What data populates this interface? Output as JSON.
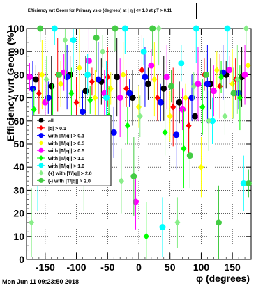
{
  "chart_data": {
    "type": "scatter",
    "title": "Efficiency wrt Geom for Primary vs φ (degrees) at | η | <= 1.0 at pT > 0.11",
    "xlabel": "φ (degrees)",
    "ylabel": "Efficiency wrt Geom (%)",
    "xlim": [
      -180,
      180
    ],
    "ylim": [
      0,
      100
    ],
    "x_ticks": [
      "-150",
      "-100",
      "-50",
      "0",
      "50",
      "100",
      "150"
    ],
    "y_ticks": [
      "0",
      "10",
      "20",
      "30",
      "40",
      "50",
      "60",
      "70",
      "80",
      "90",
      "100"
    ],
    "grid": true,
    "legend_position": "center-left",
    "series": [
      {
        "name": "all",
        "color": "#000000",
        "x": [
          -165,
          -140,
          -110,
          -85,
          -60,
          -35,
          -10,
          15,
          40,
          65,
          90,
          115,
          140,
          165
        ],
        "y": [
          78,
          75,
          80,
          73,
          77,
          79,
          70,
          76,
          74,
          68,
          62,
          76,
          80,
          79
        ]
      },
      {
        "name": "|q| > 0.1",
        "color": "#ff0000",
        "x": [
          -160,
          -130,
          -100,
          -75,
          -50,
          -20,
          5,
          30,
          55,
          80,
          105,
          130,
          155
        ],
        "y": [
          72,
          80,
          68,
          77,
          79,
          74,
          82,
          70,
          66,
          58,
          80,
          75,
          78
        ]
      },
      {
        "name": "with |T/|q|| > 0.1",
        "color": "#0000ff",
        "x": [
          -170,
          -145,
          -115,
          -90,
          -65,
          -40,
          -15,
          10,
          35,
          60,
          85,
          110,
          135,
          160
        ],
        "y": [
          74,
          70,
          79,
          64,
          78,
          55,
          72,
          79,
          68,
          54,
          70,
          76,
          81,
          72
        ]
      },
      {
        "name": "with |T/|q|| > 0.5",
        "color": "#ffff00",
        "x": [
          -155,
          -125,
          -95,
          -70,
          -45,
          -25,
          0,
          25,
          50,
          75,
          100,
          125,
          150,
          175
        ],
        "y": [
          80,
          76,
          83,
          70,
          74,
          80,
          66,
          78,
          62,
          70,
          40,
          82,
          76,
          84
        ]
      },
      {
        "name": "with |T/|q|| > 0.5",
        "color": "#ff00ff",
        "x": [
          -175,
          -150,
          -120,
          -80,
          -55,
          -30,
          -5,
          20,
          45,
          70,
          95,
          120,
          145,
          170
        ],
        "y": [
          79,
          68,
          81,
          86,
          72,
          70,
          25,
          84,
          79,
          65,
          76,
          73,
          82,
          80
        ]
      },
      {
        "name": "with |T/|q|| > 1.0",
        "color": "#00ff00",
        "x": [
          -168,
          -138,
          -108,
          -78,
          -48,
          -18,
          12,
          42,
          72,
          102,
          132,
          162
        ],
        "y": [
          65,
          60,
          72,
          69,
          62,
          58,
          10,
          55,
          48,
          66,
          79,
          70
        ]
      },
      {
        "name": "with |T/|q|| > 1.0",
        "color": "#00ffff",
        "x": [
          -162,
          -135,
          -105,
          -82,
          -52,
          -22,
          8,
          38,
          68,
          92,
          118,
          142,
          168
        ],
        "y": [
          33,
          100,
          95,
          80,
          70,
          100,
          90,
          14,
          85,
          100,
          60,
          100,
          33
        ]
      },
      {
        "name": "(+) with |T/|q|| > 2.0",
        "color": "#88ee88",
        "x": [
          -172,
          -148,
          -118,
          -88,
          -58,
          -28,
          2,
          32,
          62,
          88,
          112,
          138,
          158,
          172
        ],
        "y": [
          16,
          78,
          95,
          33,
          90,
          34,
          62,
          100,
          16,
          75,
          60,
          62,
          78,
          100
        ]
      },
      {
        "name": "(-) with |T/|q|| > 2.0",
        "color": "#44cc44",
        "x": [
          -158,
          -128,
          -98,
          -68,
          -38,
          -8,
          22,
          52,
          82,
          108,
          128,
          152,
          176
        ],
        "y": [
          100,
          80,
          40,
          96,
          100,
          36,
          100,
          75,
          45,
          80,
          16,
          72,
          33
        ]
      }
    ]
  },
  "footer": {
    "datestamp": "Mon Jun 11 09:23:50 2018"
  }
}
